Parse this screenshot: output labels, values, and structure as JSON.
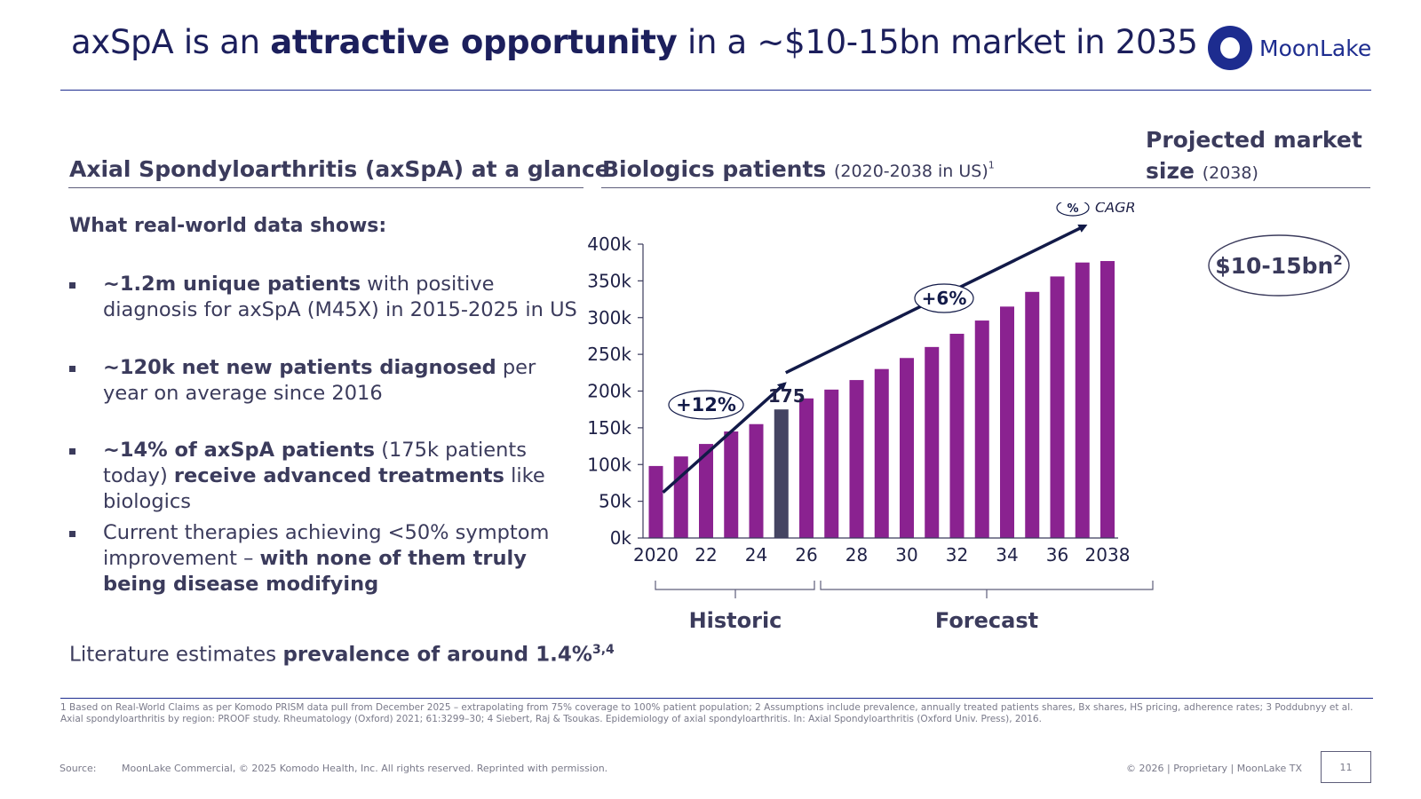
{
  "header": {
    "title_pre": "axSpA is an ",
    "title_bold": "attractive opportunity",
    "title_post": " in a ~$10-15bn market in 2035",
    "logo_text": "MoonLake",
    "logo_icon": "moon-ring-icon"
  },
  "left": {
    "heading": "Axial Spondyloarthritis (axSpA) at a glance",
    "subheading": "What real-world data shows:",
    "bullets": [
      {
        "bold": "~1.2m unique patients",
        "rest": " with positive diagnosis for axSpA (M45X) in 2015-2025 in US"
      },
      {
        "bold": "~120k net new patients diagnosed",
        "rest": " per year on average since 2016"
      },
      {
        "bold1": "~14% of axSpA patients",
        "mid": " (175k patients today) ",
        "bold2": "receive advanced treatments",
        "rest": " like biologics"
      },
      {
        "pre": "Current therapies achieving <50% symptom improvement – ",
        "bold": "with none of them truly being disease modifying"
      }
    ],
    "literature_pre": "Literature estimates ",
    "literature_bold": "prevalence of around 1.4%",
    "literature_sup": "3,4"
  },
  "middle": {
    "heading": "Biologics patients",
    "heading_sub": "(2020-2038 in US)",
    "heading_sup": "1"
  },
  "right": {
    "heading_line1": "Projected market",
    "heading_line2": "size",
    "heading_sub": "(2038)",
    "market_value": "$10-15bn",
    "market_sup": "2"
  },
  "chart_data": {
    "type": "bar",
    "years": [
      2020,
      2021,
      2022,
      2023,
      2024,
      2025,
      2026,
      2027,
      2028,
      2029,
      2030,
      2031,
      2032,
      2033,
      2034,
      2035,
      2036,
      2037,
      2038
    ],
    "values_k": [
      98,
      111,
      128,
      145,
      155,
      175,
      190,
      202,
      215,
      230,
      245,
      260,
      278,
      296,
      315,
      335,
      356,
      375,
      377
    ],
    "highlight_year": 2025,
    "highlight_label": "175",
    "y_ticks": [
      "0k",
      "50k",
      "100k",
      "150k",
      "200k",
      "250k",
      "300k",
      "350k",
      "400k"
    ],
    "ylim": [
      0,
      400
    ],
    "x_tick_labels": [
      {
        "year": 2020,
        "label": "2020"
      },
      {
        "year": 2022,
        "label": "22"
      },
      {
        "year": 2024,
        "label": "24"
      },
      {
        "year": 2026,
        "label": "26"
      },
      {
        "year": 2028,
        "label": "28"
      },
      {
        "year": 2030,
        "label": "30"
      },
      {
        "year": 2032,
        "label": "32"
      },
      {
        "year": 2034,
        "label": "34"
      },
      {
        "year": 2036,
        "label": "36"
      },
      {
        "year": 2038,
        "label": "2038"
      }
    ],
    "cagr_historic": "+12%",
    "cagr_forecast": "+6%",
    "cagr_legend_symbol": "%",
    "cagr_legend_label": "CAGR",
    "group_historic": "Historic",
    "group_forecast": "Forecast",
    "bar_color": "#8a2290",
    "highlight_color": "#444462",
    "arrow_color": "#121a48"
  },
  "footer": {
    "footnote": "1 Based on Real-World Claims as per Komodo PRISM data pull from December 2025 – extrapolating from 75% coverage to 100% patient population; 2 Assumptions include prevalence, annually treated patients shares, Bx shares, HS pricing, adherence rates; 3 Poddubnyy et al. Axial spondyloarthritis by region: PROOF study. Rheumatology (Oxford) 2021; 61:3299–30; 4 Siebert, Raj & Tsoukas. Epidemiology of axial spondyloarthritis. In: Axial Spondyloarthritis (Oxford Univ. Press), 2016.",
    "source_label": "Source:",
    "source_text": "MoonLake Commercial, © 2025 Komodo Health, Inc. All rights reserved. Reprinted with permission.",
    "copyright": "© 2026 | Proprietary | MoonLake TX",
    "page_number": "11"
  }
}
